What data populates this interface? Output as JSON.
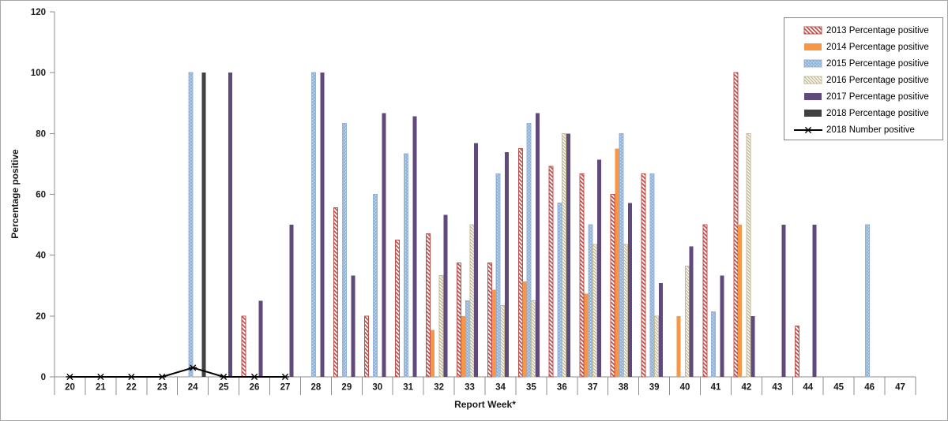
{
  "chart_data": {
    "type": "bar",
    "title": "",
    "xlabel": "Report Week*",
    "ylabel": "Percentage positive",
    "ylim": [
      0,
      120
    ],
    "yticks": [
      0,
      20,
      40,
      60,
      80,
      100,
      120
    ],
    "grid": false,
    "legend_position": "top-right",
    "axis_color": "#8c8c8c",
    "categories": [
      20,
      21,
      22,
      23,
      24,
      25,
      26,
      27,
      28,
      29,
      30,
      31,
      32,
      33,
      34,
      35,
      36,
      37,
      38,
      39,
      40,
      41,
      42,
      43,
      44,
      45,
      46,
      47
    ],
    "series": [
      {
        "name": "2013 Percentage positive",
        "type": "bar",
        "color": "#C0504D",
        "fill": "hatch-diagonal-red",
        "values": [
          null,
          null,
          null,
          null,
          null,
          null,
          20,
          null,
          null,
          55.6,
          20,
          45,
          47.1,
          37.5,
          37.5,
          75,
          69.2,
          66.7,
          60,
          66.7,
          null,
          50,
          100,
          null,
          16.7,
          null,
          null,
          null
        ]
      },
      {
        "name": "2014 Percentage positive",
        "type": "bar",
        "color": "#F79646",
        "fill": "solid",
        "values": [
          null,
          null,
          null,
          null,
          null,
          null,
          null,
          null,
          null,
          null,
          null,
          null,
          15.4,
          20,
          28.6,
          31.3,
          null,
          27.3,
          75,
          null,
          20,
          null,
          50,
          null,
          null,
          null,
          null,
          null
        ]
      },
      {
        "name": "2015 Percentage positive",
        "type": "bar",
        "color": "#95B3D7",
        "fill": "dots-blue",
        "values": [
          null,
          null,
          null,
          null,
          100,
          null,
          null,
          null,
          100,
          83.3,
          60,
          73.3,
          null,
          25,
          66.7,
          83.3,
          57.1,
          50,
          80,
          66.7,
          null,
          21.4,
          null,
          null,
          null,
          null,
          50,
          null
        ]
      },
      {
        "name": "2016 Percentage positive",
        "type": "bar",
        "color": "#C4BD97",
        "fill": "hatch-diagonal-tan",
        "values": [
          null,
          null,
          null,
          null,
          null,
          null,
          null,
          null,
          null,
          null,
          null,
          null,
          33.3,
          50,
          23.5,
          25,
          80,
          43.5,
          43.5,
          20,
          36.4,
          null,
          80,
          null,
          null,
          null,
          null,
          null
        ]
      },
      {
        "name": "2017 Percentage positive",
        "type": "bar",
        "color": "#604A7B",
        "fill": "solid",
        "values": [
          null,
          null,
          null,
          null,
          null,
          100,
          25,
          50,
          100,
          33.3,
          86.7,
          85.7,
          53.3,
          76.9,
          73.9,
          86.7,
          80,
          71.4,
          57.1,
          30.8,
          42.9,
          33.3,
          20,
          50,
          50,
          null,
          null,
          null
        ]
      },
      {
        "name": "2018 Percentage positive",
        "type": "bar",
        "color": "#404040",
        "fill": "solid",
        "values": [
          null,
          null,
          null,
          null,
          100,
          null,
          null,
          null,
          null,
          null,
          null,
          null,
          null,
          null,
          null,
          null,
          null,
          null,
          null,
          null,
          null,
          null,
          null,
          null,
          null,
          null,
          null,
          null
        ]
      },
      {
        "name": "2018 Number positive",
        "type": "line",
        "color": "#000000",
        "marker": "asterisk",
        "values": [
          0,
          0,
          0,
          0,
          3,
          0,
          0,
          0,
          null,
          null,
          null,
          null,
          null,
          null,
          null,
          null,
          null,
          null,
          null,
          null,
          null,
          null,
          null,
          null,
          null,
          null,
          null,
          null
        ]
      }
    ]
  }
}
